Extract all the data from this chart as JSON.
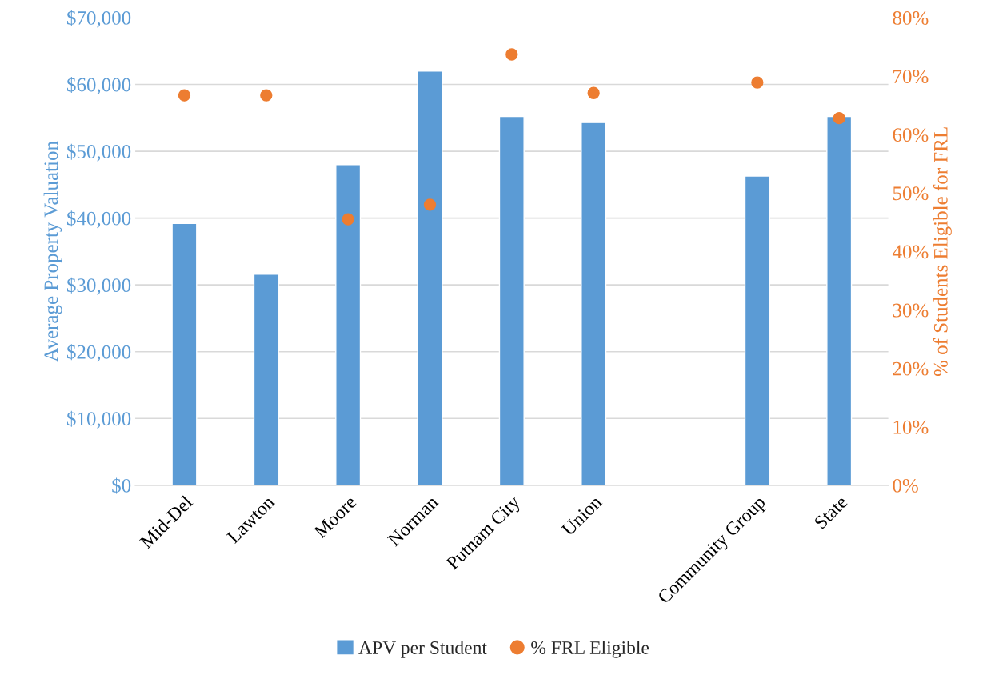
{
  "chart_data": {
    "type": "bar",
    "categories": [
      "Mid-Del",
      "Lawton",
      "Moore",
      "Norman",
      "Putnam City",
      "Union",
      null,
      "Community Group",
      "State"
    ],
    "series": [
      {
        "name": "APV per Student",
        "color": "#5b9bd5",
        "values": [
          39200,
          31600,
          48000,
          62000,
          55200,
          54300,
          null,
          46300,
          55200
        ]
      },
      {
        "name": "% FRL Eligible",
        "type": "scatter",
        "axis": "y2",
        "marker": "circle",
        "color": "#ed7d31",
        "values": [
          66.7,
          66.7,
          45.5,
          48.0,
          73.7,
          67.1,
          null,
          68.9,
          62.8
        ]
      }
    ],
    "ylabel": "Average Property Valuation",
    "y2label": "% of Students Eligible for FRL",
    "ylim": [
      0,
      70000
    ],
    "yticks": [
      {
        "value": 0,
        "label": "$0"
      },
      {
        "value": 10000,
        "label": "$10,000"
      },
      {
        "value": 20000,
        "label": "$20,000"
      },
      {
        "value": 30000,
        "label": "$30,000"
      },
      {
        "value": 40000,
        "label": "$40,000"
      },
      {
        "value": 50000,
        "label": "$50,000"
      },
      {
        "value": 60000,
        "label": "$60,000"
      },
      {
        "value": 70000,
        "label": "$70,000"
      }
    ],
    "y2lim": [
      0,
      80
    ],
    "y2ticks": [
      {
        "value": 0,
        "label": "0%"
      },
      {
        "value": 10,
        "label": "10%"
      },
      {
        "value": 20,
        "label": "20%"
      },
      {
        "value": 30,
        "label": "30%"
      },
      {
        "value": 40,
        "label": "40%"
      },
      {
        "value": 50,
        "label": "50%"
      },
      {
        "value": 60,
        "label": "60%"
      },
      {
        "value": 70,
        "label": "70%"
      },
      {
        "value": 80,
        "label": "80%"
      }
    ],
    "grid": "y",
    "legend": "bottom"
  }
}
